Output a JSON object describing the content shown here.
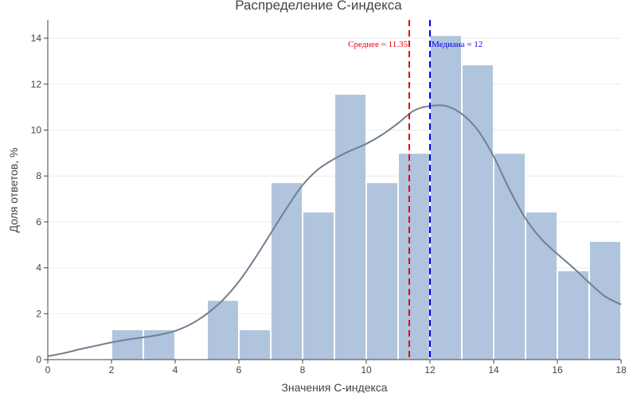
{
  "chart_data": {
    "type": "bar",
    "title": "Распределение C-индекса",
    "xlabel": "Значения C-индекса",
    "ylabel": "Доля ответов, %",
    "xlim": [
      0,
      18
    ],
    "ylim": [
      0,
      14.8
    ],
    "x_ticks": [
      0,
      2,
      4,
      6,
      8,
      10,
      12,
      14,
      16,
      18
    ],
    "y_ticks": [
      0,
      2,
      4,
      6,
      8,
      10,
      12,
      14
    ],
    "grid": true,
    "legend": "none",
    "bin_width": 1,
    "bins": [
      {
        "start": 2,
        "end": 3,
        "value": 1.28
      },
      {
        "start": 3,
        "end": 4,
        "value": 1.28
      },
      {
        "start": 5,
        "end": 6,
        "value": 2.56
      },
      {
        "start": 6,
        "end": 7,
        "value": 1.28
      },
      {
        "start": 7,
        "end": 8,
        "value": 7.69
      },
      {
        "start": 8,
        "end": 9,
        "value": 6.41
      },
      {
        "start": 9,
        "end": 10,
        "value": 11.54
      },
      {
        "start": 10,
        "end": 11,
        "value": 7.69
      },
      {
        "start": 11,
        "end": 12,
        "value": 8.97
      },
      {
        "start": 12,
        "end": 13,
        "value": 14.1
      },
      {
        "start": 13,
        "end": 14,
        "value": 12.82
      },
      {
        "start": 14,
        "end": 15,
        "value": 8.97
      },
      {
        "start": 15,
        "end": 16,
        "value": 6.41
      },
      {
        "start": 16,
        "end": 17,
        "value": 3.85
      },
      {
        "start": 17,
        "end": 18,
        "value": 5.13
      }
    ],
    "density_curve": {
      "x": [
        0,
        0.5,
        1,
        1.5,
        2,
        2.5,
        3,
        3.5,
        4,
        4.5,
        5,
        5.5,
        6,
        6.5,
        7,
        7.5,
        8,
        8.5,
        9,
        9.5,
        10,
        10.5,
        11,
        11.5,
        12,
        12.5,
        13,
        13.5,
        14,
        14.5,
        15,
        15.5,
        16,
        16.5,
        17,
        17.5,
        18
      ],
      "y": [
        0.15,
        0.28,
        0.45,
        0.6,
        0.75,
        0.87,
        0.97,
        1.08,
        1.25,
        1.55,
        2.0,
        2.6,
        3.4,
        4.4,
        5.5,
        6.6,
        7.6,
        8.3,
        8.75,
        9.1,
        9.4,
        9.8,
        10.3,
        10.85,
        11.05,
        11.05,
        10.7,
        10.0,
        8.85,
        7.4,
        6.15,
        5.25,
        4.6,
        4.0,
        3.35,
        2.75,
        2.4
      ],
      "color": "#708090"
    },
    "reference_lines": [
      {
        "x": 11.35,
        "label": "Среднее = 11.35",
        "color": "#e8000b",
        "style": "dashed"
      },
      {
        "x": 12,
        "label": "Медиана = 12",
        "color": "#0000ee",
        "style": "dashed"
      }
    ],
    "bar_color": "#b0c4de"
  }
}
